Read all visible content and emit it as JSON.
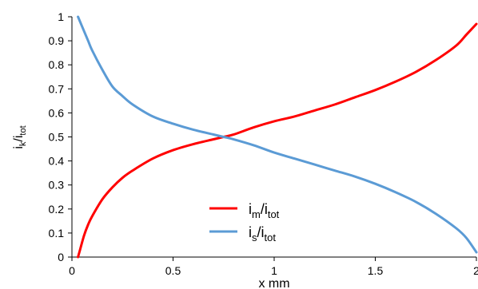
{
  "chart_data": {
    "type": "line",
    "xlabel": "x mm",
    "ylabel": {
      "main": "i",
      "sub": "k",
      "sep": "/i",
      "sub2": "tot"
    },
    "xlim": [
      0,
      2
    ],
    "ylim": [
      0,
      1
    ],
    "x_ticks": [
      "0",
      "0.5",
      "1",
      "1.5",
      "2"
    ],
    "y_ticks": [
      "0",
      "0.1",
      "0.2",
      "0.3",
      "0.4",
      "0.5",
      "0.6",
      "0.7",
      "0.8",
      "0.9",
      "1"
    ],
    "grid": false,
    "legend_position": "bottom-center",
    "series": [
      {
        "name": "im/itot",
        "label_parts": {
          "main": "i",
          "sub": "m",
          "sep": "/i",
          "sub2": "tot"
        },
        "color": "#ff0000",
        "x": [
          0.03,
          0.04,
          0.06,
          0.08,
          0.1,
          0.15,
          0.2,
          0.25,
          0.3,
          0.4,
          0.5,
          0.6,
          0.7,
          0.75,
          0.8,
          0.9,
          1.0,
          1.1,
          1.2,
          1.3,
          1.4,
          1.5,
          1.6,
          1.7,
          1.8,
          1.9,
          1.95,
          2.0
        ],
        "y": [
          0.0,
          0.03,
          0.09,
          0.135,
          0.17,
          0.24,
          0.29,
          0.33,
          0.36,
          0.41,
          0.445,
          0.47,
          0.49,
          0.5,
          0.51,
          0.54,
          0.565,
          0.585,
          0.61,
          0.635,
          0.665,
          0.695,
          0.73,
          0.77,
          0.82,
          0.88,
          0.925,
          0.97
        ]
      },
      {
        "name": "is/itot",
        "label_parts": {
          "main": "i",
          "sub": "s",
          "sep": "/i",
          "sub2": "tot"
        },
        "color": "#5b9bd5",
        "x": [
          0.03,
          0.05,
          0.08,
          0.1,
          0.15,
          0.2,
          0.25,
          0.3,
          0.4,
          0.5,
          0.6,
          0.7,
          0.75,
          0.8,
          0.9,
          1.0,
          1.1,
          1.2,
          1.3,
          1.4,
          1.5,
          1.6,
          1.7,
          1.8,
          1.9,
          1.95,
          2.0
        ],
        "y": [
          1.0,
          0.96,
          0.9,
          0.86,
          0.78,
          0.71,
          0.67,
          0.635,
          0.585,
          0.555,
          0.53,
          0.51,
          0.5,
          0.49,
          0.465,
          0.435,
          0.41,
          0.385,
          0.36,
          0.335,
          0.305,
          0.27,
          0.23,
          0.18,
          0.12,
          0.08,
          0.02
        ]
      }
    ]
  }
}
